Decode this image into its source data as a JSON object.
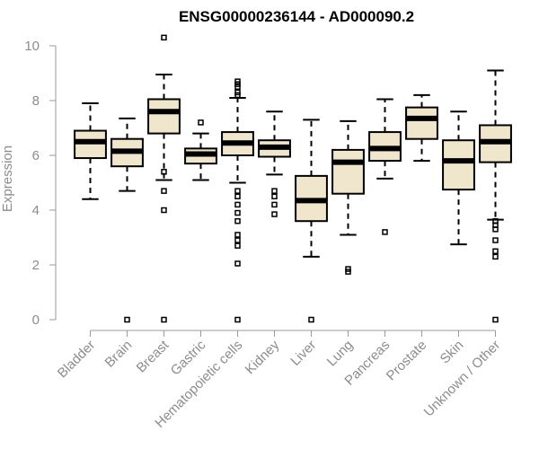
{
  "chart_data": {
    "type": "boxplot",
    "title": "ENSG00000236144 - AD000090.2",
    "ylabel": "Expression",
    "xlabel": "",
    "ylim": [
      0,
      10
    ],
    "yticks": [
      0,
      2,
      4,
      6,
      8,
      10
    ],
    "grid": false,
    "legend": "none",
    "box_fill": "#efe6cc",
    "box_stroke": "#000000",
    "axis_color": "#9a9a9a",
    "categories": [
      "Bladder",
      "Brain",
      "Breast",
      "Gastric",
      "Hematopoietic cells",
      "Kidney",
      "Liver",
      "Lung",
      "Pancreas",
      "Prostate",
      "Skin",
      "Unknown / Other"
    ],
    "boxes": [
      {
        "category": "Bladder",
        "whisker_low": 4.4,
        "q1": 5.9,
        "median": 6.5,
        "q3": 6.9,
        "whisker_high": 7.9,
        "outliers": []
      },
      {
        "category": "Brain",
        "whisker_low": 4.7,
        "q1": 5.6,
        "median": 6.15,
        "q3": 6.6,
        "whisker_high": 7.35,
        "outliers": [
          0
        ]
      },
      {
        "category": "Breast",
        "whisker_low": 5.1,
        "q1": 6.8,
        "median": 7.6,
        "q3": 8.05,
        "whisker_high": 8.95,
        "outliers": [
          10.3,
          5.4,
          4.7,
          4.0,
          0
        ]
      },
      {
        "category": "Gastric",
        "whisker_low": 5.1,
        "q1": 5.7,
        "median": 6.05,
        "q3": 6.25,
        "whisker_high": 6.8,
        "outliers": [
          7.2
        ]
      },
      {
        "category": "Hematopoietic cells",
        "whisker_low": 5.0,
        "q1": 6.0,
        "median": 6.45,
        "q3": 6.85,
        "whisker_high": 8.1,
        "outliers": [
          8.7,
          8.5,
          8.3,
          8.2,
          8.6,
          4.7,
          4.5,
          4.2,
          3.9,
          3.6,
          3.1,
          2.9,
          2.7,
          2.05,
          0
        ]
      },
      {
        "category": "Kidney",
        "whisker_low": 5.3,
        "q1": 5.95,
        "median": 6.3,
        "q3": 6.55,
        "whisker_high": 7.6,
        "outliers": [
          4.7,
          4.5,
          4.2,
          3.85
        ]
      },
      {
        "category": "Liver",
        "whisker_low": 2.3,
        "q1": 3.6,
        "median": 4.35,
        "q3": 5.25,
        "whisker_high": 7.3,
        "outliers": [
          0
        ]
      },
      {
        "category": "Lung",
        "whisker_low": 3.1,
        "q1": 4.6,
        "median": 5.75,
        "q3": 6.2,
        "whisker_high": 7.25,
        "outliers": [
          1.85,
          1.75
        ]
      },
      {
        "category": "Pancreas",
        "whisker_low": 5.15,
        "q1": 5.8,
        "median": 6.25,
        "q3": 6.85,
        "whisker_high": 8.05,
        "outliers": [
          3.2
        ]
      },
      {
        "category": "Prostate",
        "whisker_low": 5.8,
        "q1": 6.6,
        "median": 7.35,
        "q3": 7.75,
        "whisker_high": 8.2,
        "outliers": []
      },
      {
        "category": "Skin",
        "whisker_low": 2.75,
        "q1": 4.75,
        "median": 5.8,
        "q3": 6.55,
        "whisker_high": 7.6,
        "outliers": []
      },
      {
        "category": "Unknown / Other",
        "whisker_low": 3.65,
        "q1": 5.75,
        "median": 6.5,
        "q3": 7.1,
        "whisker_high": 9.1,
        "outliers": [
          3.6,
          3.45,
          3.3,
          2.9,
          2.5,
          2.3,
          0
        ]
      }
    ]
  }
}
